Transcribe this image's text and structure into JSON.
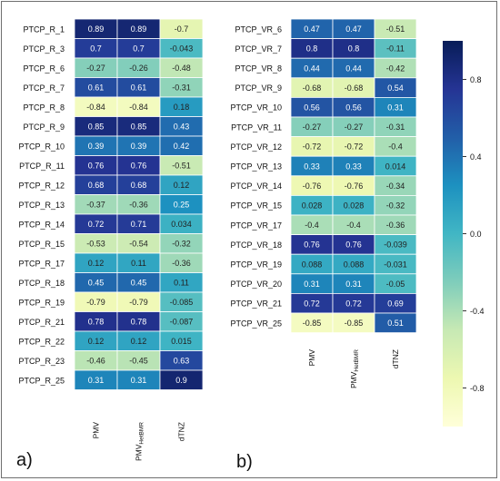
{
  "chart_data": [
    {
      "type": "heatmap",
      "panel_label": "a)",
      "rows": [
        "PTCP_R_1",
        "PTCP_R_3",
        "PTCP_R_6",
        "PTCP_R_7",
        "PTCP_R_8",
        "PTCP_R_9",
        "PTCP_R_10",
        "PTCP_R_11",
        "PTCP_R_12",
        "PTCP_R_13",
        "PTCP_R_14",
        "PTCP_R_15",
        "PTCP_R_17",
        "PTCP_R_18",
        "PTCP_R_19",
        "PTCP_R_21",
        "PTCP_R_22",
        "PTCP_R_23",
        "PTCP_R_25"
      ],
      "columns": [
        {
          "main": "PMV",
          "sub": ""
        },
        {
          "main": "PMV",
          "sub": "HetBMR"
        },
        {
          "main": "dTNZ",
          "sub": ""
        }
      ],
      "values": [
        [
          0.89,
          0.89,
          -0.7
        ],
        [
          0.7,
          0.7,
          -0.043
        ],
        [
          -0.27,
          -0.26,
          -0.48
        ],
        [
          0.61,
          0.61,
          -0.31
        ],
        [
          -0.84,
          -0.84,
          0.18
        ],
        [
          0.85,
          0.85,
          0.43
        ],
        [
          0.39,
          0.39,
          0.42
        ],
        [
          0.76,
          0.76,
          -0.51
        ],
        [
          0.68,
          0.68,
          0.12
        ],
        [
          -0.37,
          -0.36,
          0.25
        ],
        [
          0.72,
          0.71,
          0.034
        ],
        [
          -0.53,
          -0.54,
          -0.32
        ],
        [
          0.12,
          0.11,
          -0.36
        ],
        [
          0.45,
          0.45,
          0.11
        ],
        [
          -0.79,
          -0.79,
          -0.085
        ],
        [
          0.78,
          0.78,
          -0.087
        ],
        [
          0.12,
          0.12,
          0.015
        ],
        [
          -0.46,
          -0.45,
          0.63
        ],
        [
          0.31,
          0.31,
          0.9
        ]
      ]
    },
    {
      "type": "heatmap",
      "panel_label": "b)",
      "rows": [
        "PTCP_VR_6",
        "PTCP_VR_7",
        "PTCP_VR_8",
        "PTCP_VR_9",
        "PTCP_VR_10",
        "PTCP_VR_11",
        "PTCP_VR_12",
        "PTCP_VR_13",
        "PTCP_VR_14",
        "PTCP_VR_15",
        "PTCP_VR_17",
        "PTCP_VR_18",
        "PTCP_VR_19",
        "PTCP_VR_20",
        "PTCP_VR_21",
        "PTCP_VR_25"
      ],
      "columns": [
        {
          "main": "PMV",
          "sub": ""
        },
        {
          "main": "PMV",
          "sub": "HetBMR"
        },
        {
          "main": "dTNZ",
          "sub": ""
        }
      ],
      "values": [
        [
          0.47,
          0.47,
          -0.51
        ],
        [
          0.8,
          0.8,
          -0.11
        ],
        [
          0.44,
          0.44,
          -0.42
        ],
        [
          -0.68,
          -0.68,
          0.54
        ],
        [
          0.56,
          0.56,
          0.31
        ],
        [
          -0.27,
          -0.27,
          -0.31
        ],
        [
          -0.72,
          -0.72,
          -0.4
        ],
        [
          0.33,
          0.33,
          0.014
        ],
        [
          -0.76,
          -0.76,
          -0.34
        ],
        [
          0.028,
          0.028,
          -0.32
        ],
        [
          -0.4,
          -0.4,
          -0.36
        ],
        [
          0.76,
          0.76,
          -0.039
        ],
        [
          0.088,
          0.088,
          -0.031
        ],
        [
          0.31,
          0.31,
          -0.05
        ],
        [
          0.72,
          0.72,
          0.69
        ],
        [
          -0.85,
          -0.85,
          0.51
        ]
      ]
    }
  ],
  "colorbar": {
    "range": [
      -1,
      1
    ],
    "ticks": [
      0.8,
      0.4,
      0.0,
      -0.4,
      -0.8
    ],
    "tick_labels": [
      "0.8",
      "0.4",
      "0.0",
      "-0.4",
      "-0.8"
    ],
    "colormap": "YlGnBu",
    "stops": [
      "#ffffd9",
      "#edf8b1",
      "#c7e9b4",
      "#7fcdbb",
      "#41b6c4",
      "#1d91c0",
      "#225ea8",
      "#253494",
      "#081d58"
    ]
  }
}
